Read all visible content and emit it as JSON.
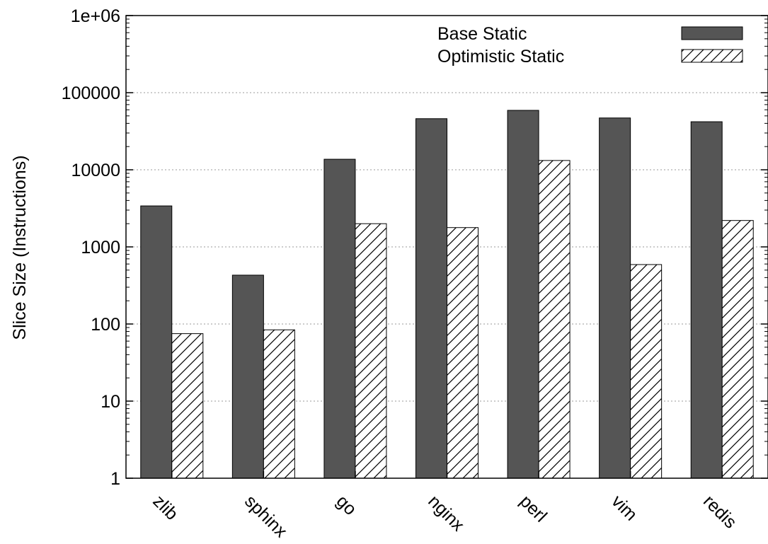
{
  "chart_data": {
    "type": "bar",
    "yscale": "log",
    "ylim": [
      1,
      1000000
    ],
    "yticks": [
      1,
      10,
      100,
      1000,
      10000,
      100000,
      1000000
    ],
    "ytick_labels": [
      "1",
      "10",
      "100",
      "1000",
      "10000",
      "100000",
      "1e+06"
    ],
    "ylabel": "Slice Size (Instructions)",
    "xlabel": "",
    "grid": "horizontal-dotted",
    "legend_position": "top-right",
    "categories": [
      "zlib",
      "sphinx",
      "go",
      "nginx",
      "perl",
      "vim",
      "redis"
    ],
    "series": [
      {
        "name": "Base Static",
        "fill": "#555555",
        "pattern": "solid",
        "values": [
          3400,
          430,
          13700,
          46000,
          59000,
          47000,
          42000
        ]
      },
      {
        "name": "Optimistic Static",
        "fill": "#ffffff",
        "pattern": "hatch",
        "values": [
          75,
          84,
          2000,
          1780,
          13200,
          590,
          2200
        ]
      }
    ]
  }
}
